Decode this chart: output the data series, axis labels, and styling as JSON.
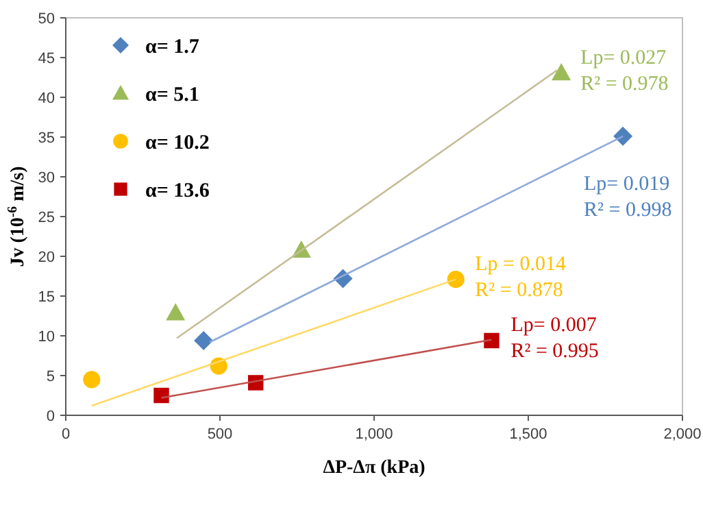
{
  "chart_data": {
    "type": "scatter",
    "xlabel": "ΔP-Δπ (kPa)",
    "ylabel": "Jv (10$^{-6}$ m/s)",
    "xlim": [
      0,
      2000
    ],
    "xticks": [
      0,
      {
        "value": 500,
        "label": "500"
      },
      {
        "value": 1000,
        "label": "1,000"
      },
      {
        "value": 1500,
        "label": "1,500"
      },
      {
        "value": 2000,
        "label": "2,000"
      }
    ],
    "ylim": [
      0,
      50
    ],
    "yticks": [
      0,
      5,
      10,
      15,
      20,
      25,
      30,
      35,
      40,
      45,
      50
    ],
    "grid": false,
    "legend": "top left",
    "series": [
      {
        "name": "α= 1.7",
        "color": "#4f81bd",
        "marker": "diamond",
        "x": [
          447,
          899,
          1807
        ],
        "values": [
          9.4,
          17.2,
          35.1
        ]
      },
      {
        "name": "α= 5.1",
        "color": "#9bbb59",
        "marker": "triangle",
        "x": [
          356,
          764,
          1607
        ],
        "values": [
          12.9,
          20.8,
          43.1
        ]
      },
      {
        "name": "α= 10.2",
        "color": "#ffc000",
        "marker": "circle",
        "x": [
          84,
          496,
          1265
        ],
        "values": [
          4.5,
          6.2,
          17.1
        ]
      },
      {
        "name": "α= 13.6",
        "color": "#c00000",
        "marker": "square",
        "x": [
          310,
          616,
          1381
        ],
        "values": [
          2.5,
          4.1,
          9.4
        ]
      },
      {
        "type": "line",
        "color": "#8ea9db",
        "marker": "none",
        "x": [
          467,
          1807
        ],
        "values": [
          9.2,
          35.1
        ]
      },
      {
        "type": "line",
        "color": "#c4bd97",
        "marker": "none",
        "x": [
          360,
          1593
        ],
        "values": [
          9.7,
          43.4
        ]
      },
      {
        "type": "line",
        "color": "#ffd966",
        "marker": "none",
        "x": [
          84,
          1265
        ],
        "values": [
          1.2,
          17.1
        ]
      },
      {
        "type": "line",
        "color": "#c0504d",
        "marker": "none",
        "x": [
          310,
          1381
        ],
        "values": [
          2.2,
          9.5
        ]
      }
    ],
    "annotations": [
      "Lp= 0.019",
      "R² = 0.998",
      "Lp= 0.027",
      "R² = 0.978",
      "Lp = 0.014",
      "R² = 0.878",
      "Lp= 0.007",
      "R² = 0.995"
    ]
  }
}
